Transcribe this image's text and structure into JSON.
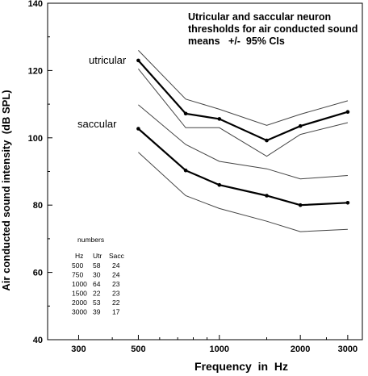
{
  "chart_data": {
    "type": "line",
    "title": [
      "Utricular and saccular neuron",
      "thresholds for air conducted sound",
      "means   +/-  95% CIs"
    ],
    "xlabel": "Frequency  in  Hz",
    "ylabel": "Air conducted sound intensity  (dB SPL)",
    "xscale": "log",
    "xlim": [
      230,
      3400
    ],
    "ylim": [
      40,
      140
    ],
    "xticks": [
      300,
      500,
      1000,
      2000,
      3000
    ],
    "yticks": [
      40,
      60,
      80,
      100,
      120,
      140
    ],
    "x": [
      500,
      750,
      1000,
      1500,
      2000,
      3000
    ],
    "series": [
      {
        "name": "utricular",
        "label": "utricular",
        "role": "mean",
        "values": [
          123,
          107.2,
          105.6,
          99.2,
          103.5,
          107.7
        ],
        "markers": true
      },
      {
        "name": "utricular",
        "role": "ci-upper",
        "values": [
          126,
          111.5,
          108.5,
          103.7,
          107,
          111
        ]
      },
      {
        "name": "utricular",
        "role": "ci-lower",
        "values": [
          120.5,
          103,
          103,
          94.5,
          101,
          104.5
        ]
      },
      {
        "name": "saccular",
        "label": "saccular",
        "role": "mean",
        "values": [
          102.7,
          90.3,
          86,
          82.8,
          80,
          80.7
        ],
        "markers": true
      },
      {
        "name": "saccular",
        "role": "ci-upper",
        "values": [
          109.8,
          98,
          93,
          90.8,
          87.8,
          88.8
        ]
      },
      {
        "name": "saccular",
        "role": "ci-lower",
        "values": [
          95.7,
          82.8,
          79,
          75.2,
          72.1,
          72.8
        ]
      }
    ],
    "annotation_table": {
      "heading": "numbers",
      "columns": [
        "Hz",
        "Utr",
        "Sacc"
      ],
      "rows": [
        [
          "500",
          "58",
          "24"
        ],
        [
          "750",
          "30",
          "24"
        ],
        [
          "1000",
          "64",
          "23"
        ],
        [
          "1500",
          "22",
          "23"
        ],
        [
          "2000",
          "53",
          "22"
        ],
        [
          "3000",
          "39",
          "17"
        ]
      ]
    },
    "grid": false,
    "colors": {
      "mean": "#000000",
      "ci": "#444444"
    }
  }
}
